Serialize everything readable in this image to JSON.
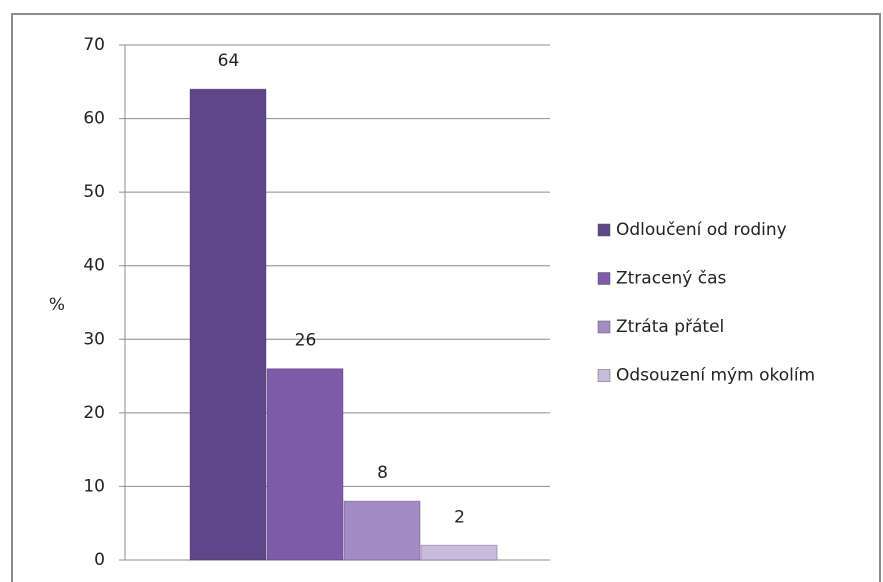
{
  "chart_data": {
    "type": "bar",
    "y_label": "%",
    "series": [
      {
        "name": "Odloučení od rodiny",
        "color": "#5e4688",
        "values": [
          64
        ]
      },
      {
        "name": "Ztracený čas",
        "color": "#7d5ba8",
        "values": [
          26
        ]
      },
      {
        "name": "Ztráta přátel",
        "color": "#a38bc6",
        "values": [
          8
        ]
      },
      {
        "name": "Odsouzení mým okolím",
        "color": "#c8bcdb",
        "values": [
          2
        ]
      }
    ],
    "ylim": [
      0,
      70
    ],
    "yticks": [
      0,
      10,
      20,
      30,
      40,
      50,
      60,
      70
    ],
    "grid": true,
    "legend": "right"
  }
}
